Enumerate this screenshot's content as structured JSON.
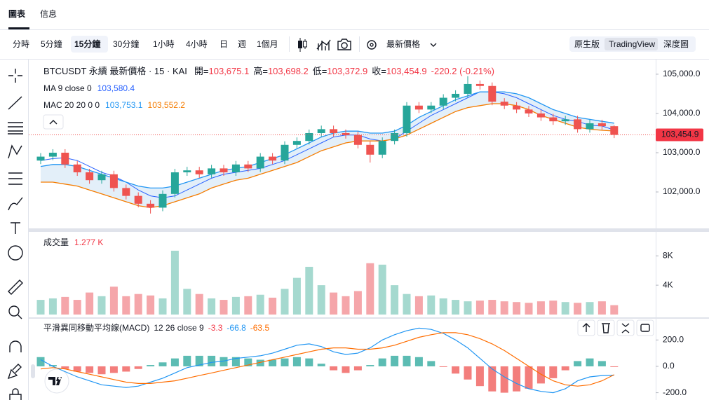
{
  "tabs": [
    {
      "label": "圖表",
      "active": true
    },
    {
      "label": "信息"
    }
  ],
  "toolbar": {
    "intervals": [
      {
        "label": "分時"
      },
      {
        "label": "5分鐘"
      },
      {
        "label": "15分鐘",
        "active": true
      },
      {
        "label": "30分鐘"
      },
      {
        "label": "1小時"
      },
      {
        "label": "4小時"
      },
      {
        "label": "日"
      },
      {
        "label": "週"
      },
      {
        "label": "1個月"
      }
    ],
    "price_type": "最新價格",
    "views": [
      {
        "label": "原生版"
      },
      {
        "label": "TradingView",
        "active": true
      },
      {
        "label": "深度圖"
      }
    ]
  },
  "chart_data": [
    {
      "type": "candlestick",
      "title": "BTCUSDT 永續 最新價格 · 15 · KAI",
      "ohlc_legend": [
        {
          "label": "開=",
          "value": "103,675.1"
        },
        {
          "label": "高=",
          "value": "103,698.2"
        },
        {
          "label": "低=",
          "value": "103,372.9"
        },
        {
          "label": "收=",
          "value": "103,454.9"
        }
      ],
      "change": "-220.2 (-0.21%)",
      "up_color": "#26a69a",
      "down_color": "#ef5350",
      "open": [
        102800,
        102900,
        103000,
        102700,
        102500,
        102300,
        102450,
        102100,
        101900,
        101700,
        101600,
        101950,
        102500,
        102550,
        102450,
        102600,
        102500,
        102700,
        102600,
        102900,
        102800,
        103200,
        103300,
        103500,
        103600,
        103500,
        103450,
        103200,
        102950,
        103300,
        103500,
        104200,
        104100,
        104200,
        104400,
        104500,
        104750,
        104700,
        104300,
        104200,
        104100,
        104000,
        103900,
        103800,
        103850,
        103600,
        103750,
        103675.1
      ],
      "high": [
        102990,
        103090,
        103090,
        102790,
        102590,
        102540,
        102540,
        102190,
        101990,
        101790,
        102040,
        102590,
        102640,
        102640,
        102690,
        102690,
        102790,
        102790,
        102990,
        102990,
        103290,
        103390,
        103590,
        103690,
        103690,
        103590,
        103540,
        103290,
        103390,
        103590,
        104290,
        104290,
        104290,
        104490,
        104590,
        104950,
        104840,
        104790,
        104390,
        104290,
        104190,
        104090,
        103990,
        103940,
        103940,
        103840,
        103840,
        103698.2
      ],
      "low": [
        102710,
        102810,
        102610,
        102410,
        102210,
        102210,
        102010,
        101810,
        101610,
        101450,
        101510,
        101860,
        102410,
        102360,
        102360,
        102410,
        102410,
        102510,
        102510,
        102710,
        102710,
        103110,
        103210,
        103410,
        103410,
        103360,
        103110,
        102750,
        102860,
        103210,
        103410,
        104010,
        104010,
        104110,
        104310,
        104410,
        104610,
        104210,
        104110,
        104010,
        103910,
        103810,
        103710,
        103710,
        103510,
        103510,
        103585,
        103372.9
      ],
      "close": [
        102900,
        103000,
        102700,
        102500,
        102300,
        102450,
        102100,
        101900,
        101700,
        101600,
        101950,
        102500,
        102550,
        102450,
        102600,
        102500,
        102700,
        102600,
        102900,
        102800,
        103200,
        103300,
        103500,
        103600,
        103500,
        103450,
        103200,
        102950,
        103300,
        103500,
        104200,
        104100,
        104200,
        104400,
        104500,
        104750,
        104700,
        104300,
        104200,
        104100,
        104000,
        103900,
        103800,
        103850,
        103600,
        103750,
        103675.1,
        103454.9
      ],
      "indicators": [
        {
          "name": "MA 9 close 0",
          "value_labels": [
            "103,580.4"
          ],
          "series": [
            {
              "color": "#2962ff",
              "values": [
                102800,
                102850,
                102870,
                102800,
                102650,
                102500,
                102400,
                102250,
                102050,
                101900,
                101850,
                101900,
                102050,
                102200,
                102350,
                102450,
                102500,
                102550,
                102600,
                102700,
                102800,
                102950,
                103100,
                103250,
                103400,
                103450,
                103450,
                103350,
                103300,
                103350,
                103550,
                103750,
                103950,
                104100,
                104250,
                104400,
                104550,
                104550,
                104500,
                104400,
                104250,
                104100,
                103950,
                103850,
                103800,
                103700,
                103680,
                103580.4
              ]
            }
          ]
        },
        {
          "name": "MAC 20 20 0 0",
          "value_labels": [
            "103,753.1",
            "103,552.2"
          ],
          "band_color": "#dcebf8",
          "series": [
            {
              "color": "#2196f3",
              "values": [
                102650,
                102700,
                102700,
                102650,
                102550,
                102450,
                102350,
                102250,
                102150,
                102100,
                102100,
                102150,
                102250,
                102350,
                102450,
                102550,
                102600,
                102650,
                102750,
                102850,
                102950,
                103100,
                103250,
                103400,
                103500,
                103550,
                103550,
                103500,
                103500,
                103550,
                103700,
                103900,
                104050,
                104200,
                104350,
                104450,
                104550,
                104550,
                104550,
                104500,
                104400,
                104250,
                104100,
                104000,
                103900,
                103850,
                103800,
                103753.1
              ]
            },
            {
              "color": "#f57c00",
              "values": [
                102250,
                102250,
                102200,
                102150,
                102050,
                101950,
                101850,
                101750,
                101650,
                101600,
                101650,
                101750,
                101850,
                101950,
                102100,
                102200,
                102300,
                102350,
                102450,
                102550,
                102650,
                102750,
                102900,
                103050,
                103150,
                103250,
                103300,
                103300,
                103300,
                103350,
                103450,
                103600,
                103750,
                103900,
                104050,
                104150,
                104200,
                104250,
                104250,
                104200,
                104100,
                103950,
                103850,
                103750,
                103650,
                103600,
                103570,
                103552.2
              ]
            }
          ]
        }
      ],
      "last_price": {
        "value": 103454.9,
        "label": "103,454.9"
      },
      "ylim": [
        101090,
        105320
      ],
      "yticks": [
        {
          "value": 105000,
          "label": "105,000.0"
        },
        {
          "value": 104000,
          "label": "104,000.0"
        },
        {
          "value": 103000,
          "label": "103,000.0"
        },
        {
          "value": 102000,
          "label": "102,000.0"
        }
      ],
      "grid": false
    },
    {
      "type": "bar",
      "title": "成交量",
      "legend_value": "1.277 K",
      "up_color": "#a5d9cf",
      "down_color": "#f5a6aa",
      "values": [
        2.0,
        2.2,
        2.4,
        2.0,
        3.0,
        2.5,
        3.8,
        2.5,
        2.8,
        2.6,
        2.2,
        8.7,
        3.5,
        2.8,
        2.2,
        2.0,
        2.4,
        2.5,
        2.7,
        2.3,
        3.5,
        5.0,
        6.5,
        4.0,
        3.0,
        2.5,
        3.2,
        7.0,
        6.8,
        4.0,
        2.8,
        2.5,
        2.6,
        2.2,
        2.0,
        1.8,
        1.9,
        2.0,
        1.8,
        1.7,
        1.6,
        1.8,
        1.9,
        1.7,
        1.6,
        1.7,
        1.8,
        1.277
      ],
      "ylim": [
        0,
        10.6
      ],
      "yticks": [
        {
          "value": 8,
          "label": "8K"
        },
        {
          "value": 4,
          "label": "4K"
        }
      ]
    },
    {
      "type": "macd",
      "title": "平滑異同移動平均線(MACD)",
      "params": "12 26 close 9",
      "legend_values": [
        "-3.3",
        "-66.8",
        "-63.5"
      ],
      "histogram": {
        "pos_color": "#26a69a",
        "neg_color": "#ef5350",
        "values": [
          70,
          10,
          -20,
          -40,
          -50,
          -60,
          -50,
          -40,
          -20,
          10,
          30,
          60,
          80,
          80,
          80,
          70,
          70,
          60,
          50,
          50,
          60,
          70,
          60,
          20,
          -30,
          -50,
          -30,
          10,
          60,
          80,
          80,
          70,
          40,
          -5,
          -55,
          -100,
          -150,
          -190,
          -200,
          -190,
          -170,
          -130,
          -90,
          -30,
          40,
          60,
          40,
          -3.3
        ]
      },
      "series": [
        {
          "color": "#2196f3",
          "values": [
            50,
            0,
            -40,
            -80,
            -110,
            -140,
            -150,
            -160,
            -150,
            -120,
            -90,
            -50,
            -10,
            10,
            30,
            40,
            60,
            70,
            80,
            100,
            130,
            160,
            170,
            150,
            110,
            90,
            100,
            140,
            200,
            240,
            270,
            290,
            280,
            250,
            200,
            140,
            60,
            -20,
            -80,
            -130,
            -170,
            -190,
            -200,
            -170,
            -110,
            -80,
            -70,
            -66.8
          ]
        },
        {
          "color": "#ff6d00",
          "values": [
            -20,
            -10,
            -20,
            -40,
            -60,
            -80,
            -100,
            -120,
            -130,
            -130,
            -120,
            -110,
            -90,
            -70,
            -50,
            -30,
            -10,
            10,
            30,
            50,
            70,
            90,
            110,
            130,
            140,
            140,
            130,
            130,
            140,
            160,
            190,
            220,
            240,
            255,
            255,
            240,
            210,
            170,
            120,
            60,
            0,
            -60,
            -110,
            -140,
            -150,
            -140,
            -110,
            -63.5
          ]
        }
      ],
      "ylim": [
        -250,
        345
      ],
      "yticks": [
        {
          "value": 200,
          "label": "200.0"
        },
        {
          "value": 0,
          "label": "0.0"
        },
        {
          "value": -200,
          "label": "-200.0"
        }
      ]
    }
  ]
}
